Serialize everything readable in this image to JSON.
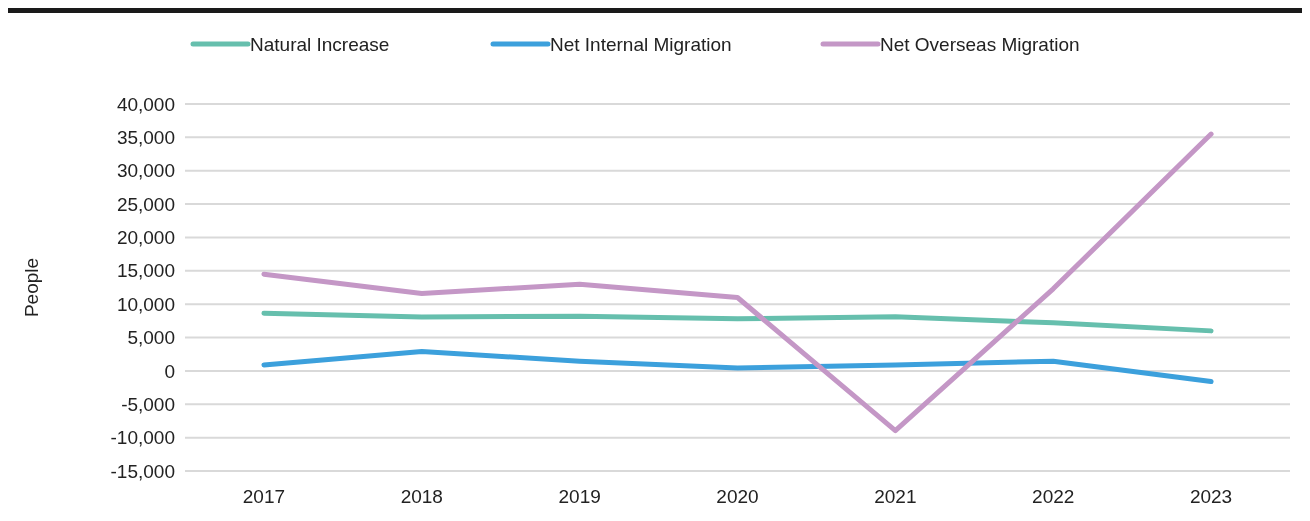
{
  "chart_data": {
    "type": "line",
    "ylabel": "People",
    "categories": [
      "2017",
      "2018",
      "2019",
      "2020",
      "2021",
      "2022",
      "2023"
    ],
    "series": [
      {
        "name": "Natural Increase",
        "color": "#66bfad",
        "values": [
          8650,
          8070,
          8200,
          7800,
          8100,
          7200,
          6000
        ]
      },
      {
        "name": "Net Internal Migration",
        "color": "#3ca0dc",
        "values": [
          900,
          2900,
          1450,
          450,
          900,
          1450,
          -1600
        ]
      },
      {
        "name": "Net Overseas Migration",
        "color": "#c497c6",
        "values": [
          14500,
          11600,
          13000,
          11000,
          -8950,
          12300,
          35500
        ]
      }
    ],
    "ylim": [
      -15000,
      40000
    ],
    "yticks": [
      {
        "value": -15000,
        "label": "-15,000"
      },
      {
        "value": -10000,
        "label": "-10,000"
      },
      {
        "value": -5000,
        "label": "-5,000"
      },
      0,
      {
        "value": 5000,
        "label": "5,000"
      },
      {
        "value": 10000,
        "label": "10,000"
      },
      {
        "value": 15000,
        "label": "15,000"
      },
      {
        "value": 20000,
        "label": "20,000"
      },
      {
        "value": 25000,
        "label": "25,000"
      },
      {
        "value": 30000,
        "label": "30,000"
      },
      {
        "value": 35000,
        "label": "35,000"
      },
      {
        "value": 40000,
        "label": "40,000"
      }
    ],
    "grid": "y",
    "legend": "top",
    "marker": "none",
    "line_style": "solid"
  }
}
